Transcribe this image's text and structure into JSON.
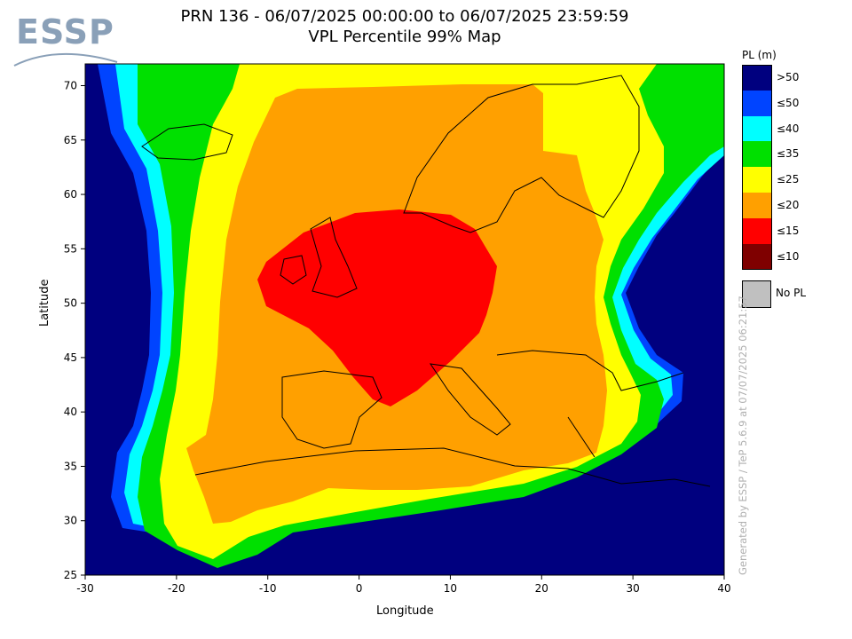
{
  "header": {
    "logo_text": "ESSP",
    "title_line1": "PRN 136 - 06/07/2025 00:00:00 to 06/07/2025 23:59:59",
    "title_line2": "VPL Percentile 99% Map"
  },
  "axes": {
    "x_title": "Longitude",
    "y_title": "Latitude",
    "x_ticks": [
      "-30",
      "-20",
      "-10",
      "0",
      "10",
      "20",
      "30",
      "40"
    ],
    "y_ticks": [
      "25",
      "30",
      "35",
      "40",
      "45",
      "50",
      "55",
      "60",
      "65",
      "70"
    ],
    "x_range": [
      -30,
      40
    ],
    "y_range": [
      25,
      72
    ]
  },
  "legend": {
    "title": "PL (m)",
    "items": [
      {
        "label": ">50",
        "color": "#00007f"
      },
      {
        "label": "≤50",
        "color": "#0044ff"
      },
      {
        "label": "≤40",
        "color": "#00ffff"
      },
      {
        "label": "≤35",
        "color": "#00e000"
      },
      {
        "label": "≤25",
        "color": "#ffff00"
      },
      {
        "label": "≤20",
        "color": "#ffa000"
      },
      {
        "label": "≤15",
        "color": "#ff0000"
      },
      {
        "label": "≤10",
        "color": "#7f0000"
      }
    ],
    "no_pl_label": "No PL",
    "no_pl_color": "#c0c0c0"
  },
  "credit": "Generated by ESSP / TeP 5.6.9 at 07/07/2025 06:21:57",
  "chart_data": {
    "type": "heatmap",
    "title": "VPL Percentile 99% Map",
    "xlabel": "Longitude",
    "ylabel": "Latitude",
    "xlim": [
      -30,
      40
    ],
    "ylim": [
      25,
      72
    ],
    "zones": [
      {
        "label": ">50",
        "color": "#00007f",
        "lon_span": [
          -30,
          40
        ],
        "lat_span": [
          25,
          72
        ]
      },
      {
        "label": "≤50",
        "color": "#0044ff",
        "lon_span": [
          -27,
          36
        ],
        "lat_span": [
          30,
          72
        ]
      },
      {
        "label": "≤40",
        "color": "#00ffff",
        "lon_span": [
          -26,
          35
        ],
        "lat_span": [
          29,
          72
        ]
      },
      {
        "label": "≤35",
        "color": "#00e000",
        "lon_span": [
          -25,
          40
        ],
        "lat_span": [
          25,
          72
        ]
      },
      {
        "label": "≤25",
        "color": "#ffff00",
        "lon_span": [
          -20,
          33
        ],
        "lat_span": [
          27,
          72
        ]
      },
      {
        "label": "≤20",
        "color": "#ffa000",
        "lon_span": [
          -17,
          27
        ],
        "lat_span": [
          30,
          71
        ]
      },
      {
        "label": "≤15",
        "color": "#ff0000",
        "lon_span": [
          -11,
          15
        ],
        "lat_span": [
          40.5,
          58.5
        ]
      }
    ]
  }
}
